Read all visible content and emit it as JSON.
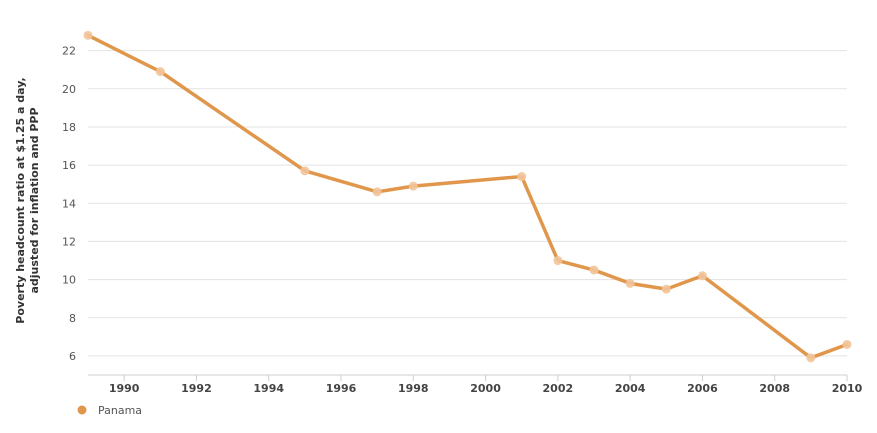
{
  "chart_data": {
    "type": "line",
    "ylabel": [
      "Poverty headcount ratio at $1.25 a day,",
      "adjusted for inflation and PPP"
    ],
    "xlabel": "",
    "x_ticks": [
      "1990",
      "1992",
      "1994",
      "1996",
      "1998",
      "2000",
      "2002",
      "2004",
      "2006",
      "2008",
      "2010"
    ],
    "y_ticks": [
      "6",
      "8",
      "10",
      "12",
      "14",
      "16",
      "18",
      "20",
      "22"
    ],
    "xlim": [
      1989,
      2010
    ],
    "ylim": [
      5,
      23.5
    ],
    "grid": true,
    "legend_position": "bottom-left",
    "color": "#e0974c",
    "series": [
      {
        "name": "Panama",
        "x": [
          1989,
          1991,
          1995,
          1997,
          1998,
          2001,
          2002,
          2003,
          2004,
          2005,
          2006,
          2009,
          2010
        ],
        "y": [
          22.8,
          20.9,
          15.7,
          14.6,
          14.9,
          15.4,
          11.0,
          10.5,
          9.8,
          9.5,
          10.2,
          5.9,
          6.6
        ]
      }
    ]
  }
}
